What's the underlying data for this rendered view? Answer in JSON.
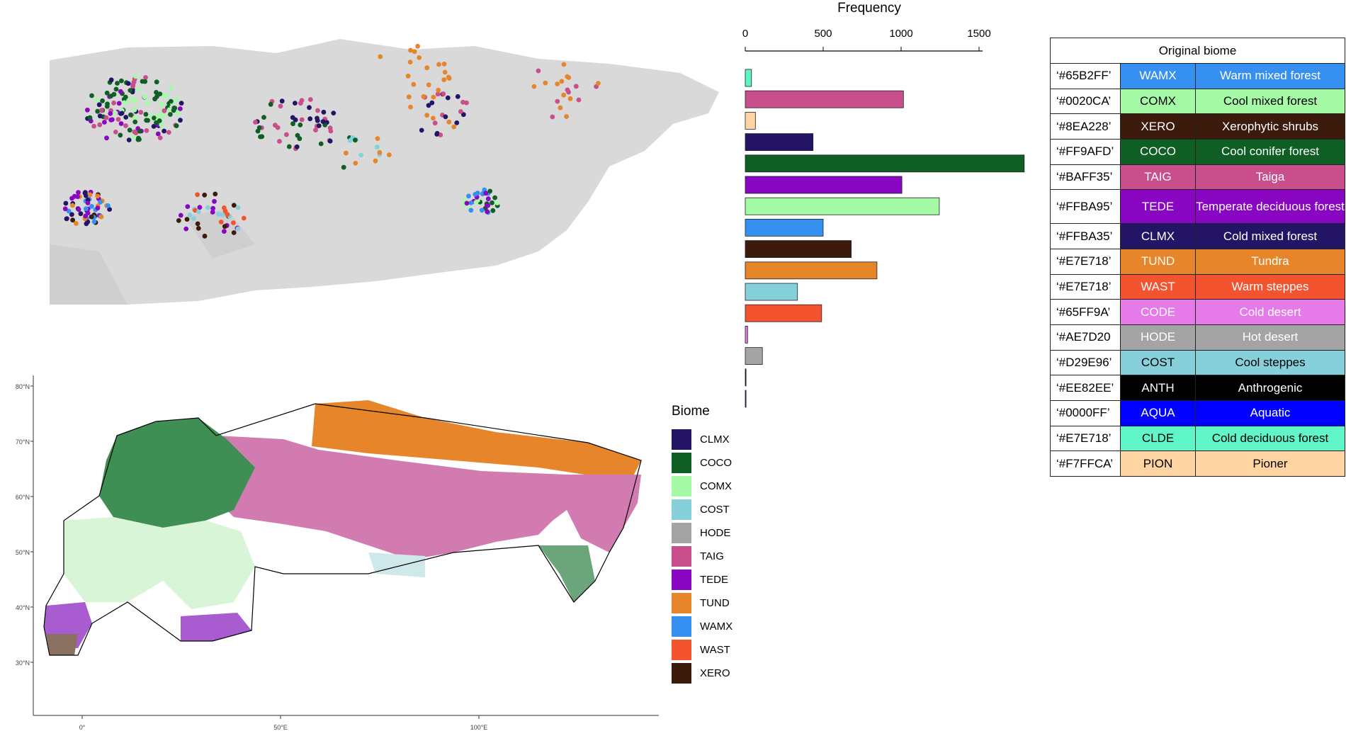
{
  "colors": {
    "CLMX": "#241466",
    "COCO": "#0f5e23",
    "COMX": "#a5fba5",
    "COST": "#85d0da",
    "HODE": "#a4a4a4",
    "TAIG": "#c84e8c",
    "TEDE": "#8906c2",
    "TUND": "#e6852a",
    "WAMX": "#3690f2",
    "WAST": "#f4532f",
    "XERO": "#3c1a0c",
    "CODE": "#e57ae8",
    "ANTH": "#000000",
    "AQUA": "#0000ff",
    "CLDE": "#5ff5c7",
    "PION": "#fed4a3",
    "land": "#d9d9d9"
  },
  "top_map": {},
  "bottom_map": {
    "y_ticks": [
      "80°N",
      "70°N",
      "60°N",
      "50°N",
      "40°N",
      "30°N"
    ],
    "x_ticks": [
      "0°",
      "50°E",
      "100°E"
    ]
  },
  "legend": {
    "title": "Biome",
    "items": [
      "CLMX",
      "COCO",
      "COMX",
      "COST",
      "HODE",
      "TAIG",
      "TEDE",
      "TUND",
      "WAMX",
      "WAST",
      "XERO"
    ]
  },
  "chart_data": {
    "type": "bar",
    "orientation": "horizontal",
    "title": "Frequency",
    "xlim": [
      0,
      1750
    ],
    "x_ticks": [
      "0",
      "500",
      "1000",
      "1500"
    ],
    "categories": [
      "CLDE",
      "TAIG",
      "PION",
      "CLMX",
      "COCO",
      "TEDE",
      "COMX",
      "WAMX",
      "XERO",
      "TUND",
      "COST",
      "WAST",
      "CODE",
      "HODE",
      "ANTH",
      "AQUA"
    ],
    "values": [
      40,
      1015,
      65,
      435,
      1790,
      1005,
      1245,
      500,
      680,
      845,
      335,
      490,
      15,
      110,
      5,
      5
    ]
  },
  "table": {
    "header": "Original biome",
    "rows": [
      {
        "hex": "‘#65B2FF’",
        "code": "WAMX",
        "name": "Warm mixed forest",
        "key": "WAMX"
      },
      {
        "hex": "‘#0020CA’",
        "code": "COMX",
        "name": "Cool mixed forest",
        "key": "COMX"
      },
      {
        "hex": "‘#8EA228’",
        "code": "XERO",
        "name": "Xerophytic shrubs",
        "key": "XERO"
      },
      {
        "hex": "‘#FF9AFD’",
        "code": "COCO",
        "name": "Cool conifer forest",
        "key": "COCO"
      },
      {
        "hex": "‘#BAFF35’",
        "code": "TAIG",
        "name": "Taiga",
        "key": "TAIG"
      },
      {
        "hex": "‘#FFBA95’",
        "code": "TEDE",
        "name": "Temperate deciduous forest",
        "key": "TEDE"
      },
      {
        "hex": "‘#FFBA35’",
        "code": "CLMX",
        "name": "Cold mixed forest",
        "key": "CLMX"
      },
      {
        "hex": "‘#E7E718’",
        "code": "TUND",
        "name": "Tundra",
        "key": "TUND"
      },
      {
        "hex": "‘#E7E718’",
        "code": "WAST",
        "name": "Warm steppes",
        "key": "WAST"
      },
      {
        "hex": "‘#65FF9A’",
        "code": "CODE",
        "name": "Cold desert",
        "key": "CODE"
      },
      {
        "hex": "‘#AE7D20",
        "code": "HODE",
        "name": "Hot desert",
        "key": "HODE"
      },
      {
        "hex": "‘#D29E96’",
        "code": "COST",
        "name": "Cool steppes",
        "key": "COST"
      },
      {
        "hex": "‘#EE82EE’",
        "code": "ANTH",
        "name": "Anthrogenic",
        "key": "ANTH"
      },
      {
        "hex": "‘#0000FF’",
        "code": "AQUA",
        "name": "Aquatic",
        "key": "AQUA"
      },
      {
        "hex": "‘#E7E718’",
        "code": "CLDE",
        "name": "Cold deciduous forest",
        "key": "CLDE"
      },
      {
        "hex": "‘#F7FFCA’",
        "code": "PION",
        "name": "Pioner",
        "key": "PION"
      }
    ]
  }
}
